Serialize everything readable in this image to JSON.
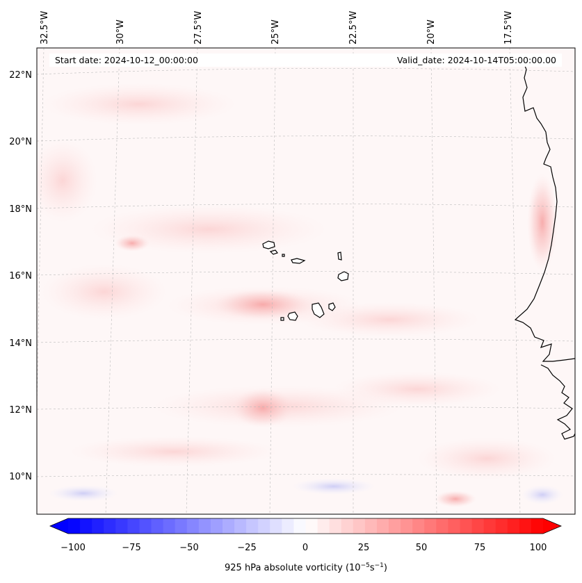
{
  "map": {
    "start_date": "Start date: 2024-10-12_00:00:00",
    "valid_date": "Valid_date: 2024-10-14T05:00:00.00",
    "lon_labels": [
      "32.5°W",
      "30°W",
      "27.5°W",
      "25°W",
      "22.5°W",
      "20°W",
      "17.5°W"
    ],
    "lat_labels": [
      "22°N",
      "20°N",
      "18°N",
      "16°N",
      "14°N",
      "12°N",
      "10°N"
    ]
  },
  "colorbar": {
    "label_text": "925 hPa absolute vorticity (10",
    "label_exp1": "−5",
    "label_unit": "s",
    "label_exp2": "−1",
    "label_close": ")",
    "ticks": [
      "−100",
      "−75",
      "−50",
      "−25",
      "0",
      "25",
      "50",
      "75",
      "100"
    ],
    "min_color": "#0000ff",
    "mid_color": "#ffffff",
    "max_color": "#ff0000"
  },
  "colors": {
    "coastline": "#000000",
    "gridline": "#bbbbbb",
    "background": "#fff8f8"
  }
}
